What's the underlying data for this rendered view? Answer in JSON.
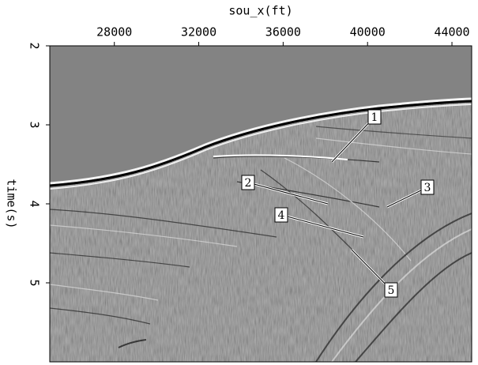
{
  "chart_data": {
    "type": "image",
    "x_label": "sou_x(ft)",
    "y_label": "time(s)",
    "xlim": [
      24940,
      44935
    ],
    "xticks": [
      28000,
      32000,
      36000,
      40000,
      44000
    ],
    "ylim": [
      6,
      2
    ],
    "yticks": [
      2,
      3,
      4,
      5
    ],
    "annotations": [
      "1",
      "2",
      "3",
      "4",
      "5"
    ]
  }
}
